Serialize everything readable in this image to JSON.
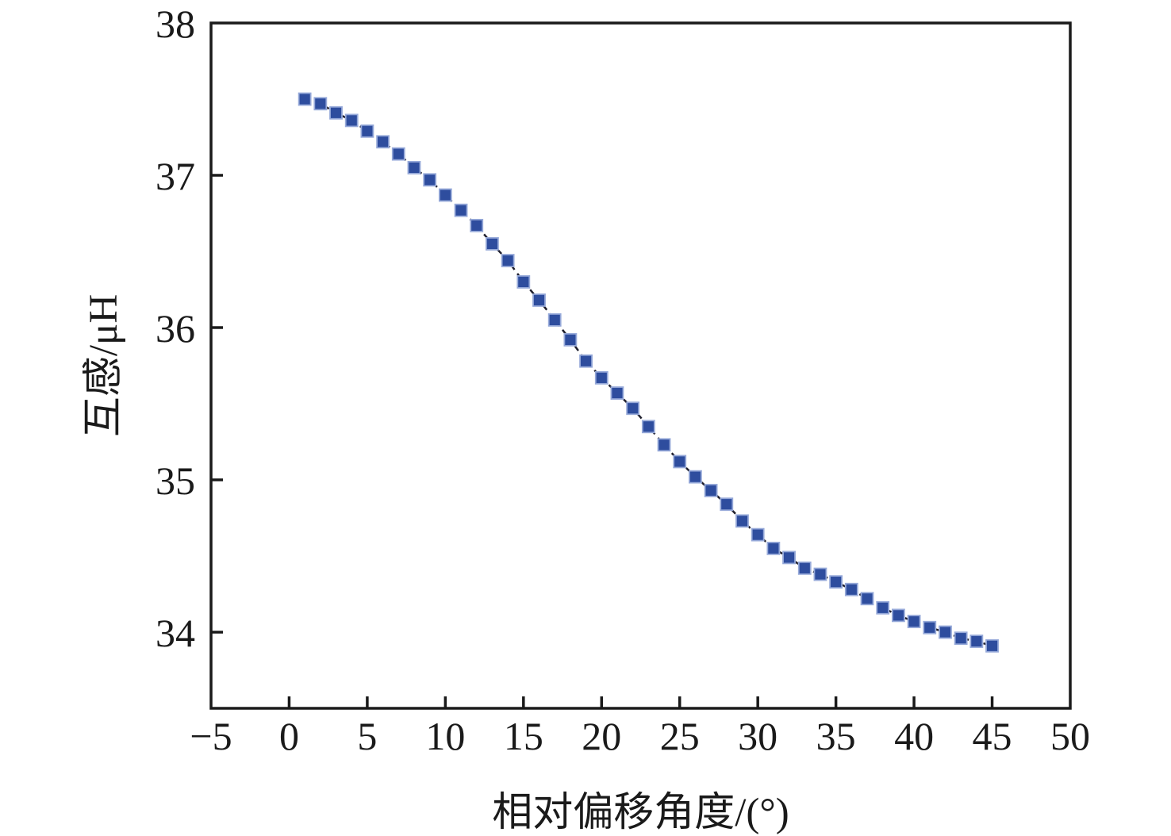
{
  "chart_data": {
    "type": "line",
    "title": "",
    "xlabel": "相对偏移角度/(°)",
    "ylabel": "互感/μH",
    "x": [
      1,
      2,
      3,
      4,
      5,
      6,
      7,
      8,
      9,
      10,
      11,
      12,
      13,
      14,
      15,
      16,
      17,
      18,
      19,
      20,
      21,
      22,
      23,
      24,
      25,
      26,
      27,
      28,
      29,
      30,
      31,
      32,
      33,
      34,
      35,
      36,
      37,
      38,
      39,
      40,
      41,
      42,
      43,
      44,
      45
    ],
    "y": [
      37.5,
      37.47,
      37.41,
      37.36,
      37.29,
      37.22,
      37.14,
      37.05,
      36.97,
      36.87,
      36.77,
      36.67,
      36.55,
      36.44,
      36.3,
      36.18,
      36.05,
      35.92,
      35.78,
      35.67,
      35.57,
      35.47,
      35.35,
      35.23,
      35.12,
      35.02,
      34.93,
      34.84,
      34.73,
      34.64,
      34.55,
      34.49,
      34.42,
      34.38,
      34.33,
      34.28,
      34.22,
      34.16,
      34.11,
      34.07,
      34.03,
      34.0,
      33.96,
      33.94,
      33.91
    ],
    "xlim": [
      -5,
      50
    ],
    "ylim": [
      33.5,
      38
    ],
    "xticks": [
      -5,
      0,
      5,
      10,
      15,
      20,
      25,
      30,
      35,
      40,
      45,
      50
    ],
    "yticks": [
      34,
      35,
      36,
      37,
      38
    ],
    "grid": false,
    "legend": null,
    "marker": "square",
    "marker_size": 15,
    "line_style": "dashed",
    "colors": {
      "marker_fill": "#2e4d9e",
      "marker_edge": "#96a9d9",
      "line": "#20202e",
      "axis": "#1a1a1a",
      "text": "#1a1a1a",
      "background": "#ffffff"
    }
  }
}
